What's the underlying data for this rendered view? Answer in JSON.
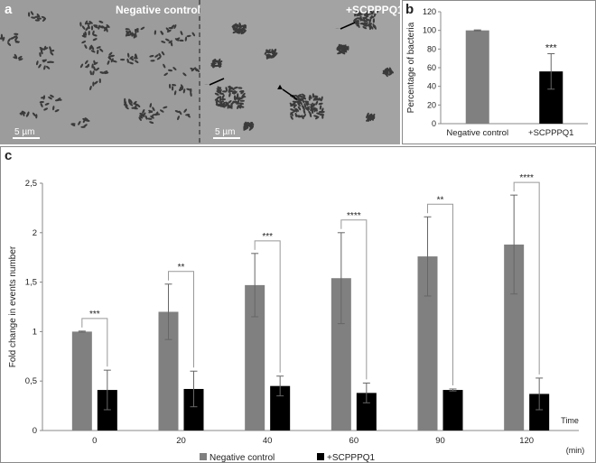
{
  "panel_a": {
    "letter": "a",
    "left_label": "Negative control",
    "right_label": "+SCPPPQ1",
    "scale_left": "5 µm",
    "scale_right": "5 µm"
  },
  "panel_b": {
    "letter": "b"
  },
  "panel_c": {
    "letter": "c"
  },
  "colors": {
    "negative": "#808080",
    "treated": "#000000",
    "micrograph_bg": "#9a9a9a",
    "bacteria": "#3a3a3a"
  },
  "chart_data": [
    {
      "type": "bar",
      "panel": "b",
      "title": "",
      "xlabel": "",
      "ylabel": "Percentage of bacteria",
      "categories": [
        "Negative control",
        "+SCPPPQ1"
      ],
      "values": [
        100,
        56
      ],
      "errors": [
        0.5,
        19
      ],
      "bar_colors": [
        "#808080",
        "#000000"
      ],
      "ylim": [
        0,
        120
      ],
      "yticks": [
        0,
        20,
        40,
        60,
        80,
        100,
        120
      ],
      "significance": [
        "",
        "***"
      ],
      "grid": false
    },
    {
      "type": "bar",
      "panel": "c",
      "title": "",
      "xlabel": "Time (min)",
      "ylabel": "Fold change in events number",
      "categories": [
        "0",
        "20",
        "40",
        "60",
        "90",
        "120"
      ],
      "series": [
        {
          "name": "Negative control",
          "color": "#808080",
          "values": [
            1.0,
            1.2,
            1.47,
            1.54,
            1.76,
            1.88
          ],
          "errors": [
            0.005,
            0.28,
            0.32,
            0.46,
            0.4,
            0.5
          ]
        },
        {
          "name": "+SCPPPQ1",
          "color": "#000000",
          "values": [
            0.41,
            0.42,
            0.45,
            0.38,
            0.41,
            0.37
          ],
          "errors": [
            0.2,
            0.18,
            0.1,
            0.1,
            0.01,
            0.16
          ]
        }
      ],
      "significance": [
        "***",
        "**",
        "***",
        "****",
        "**",
        "****"
      ],
      "ylim": [
        0,
        2.5
      ],
      "yticks": [
        "0",
        "0,5",
        "1",
        "1,5",
        "2",
        "2,5"
      ],
      "xlabel_top": "Time",
      "xlabel_bottom": "(min)",
      "legend": "bottom",
      "grid": false
    }
  ]
}
